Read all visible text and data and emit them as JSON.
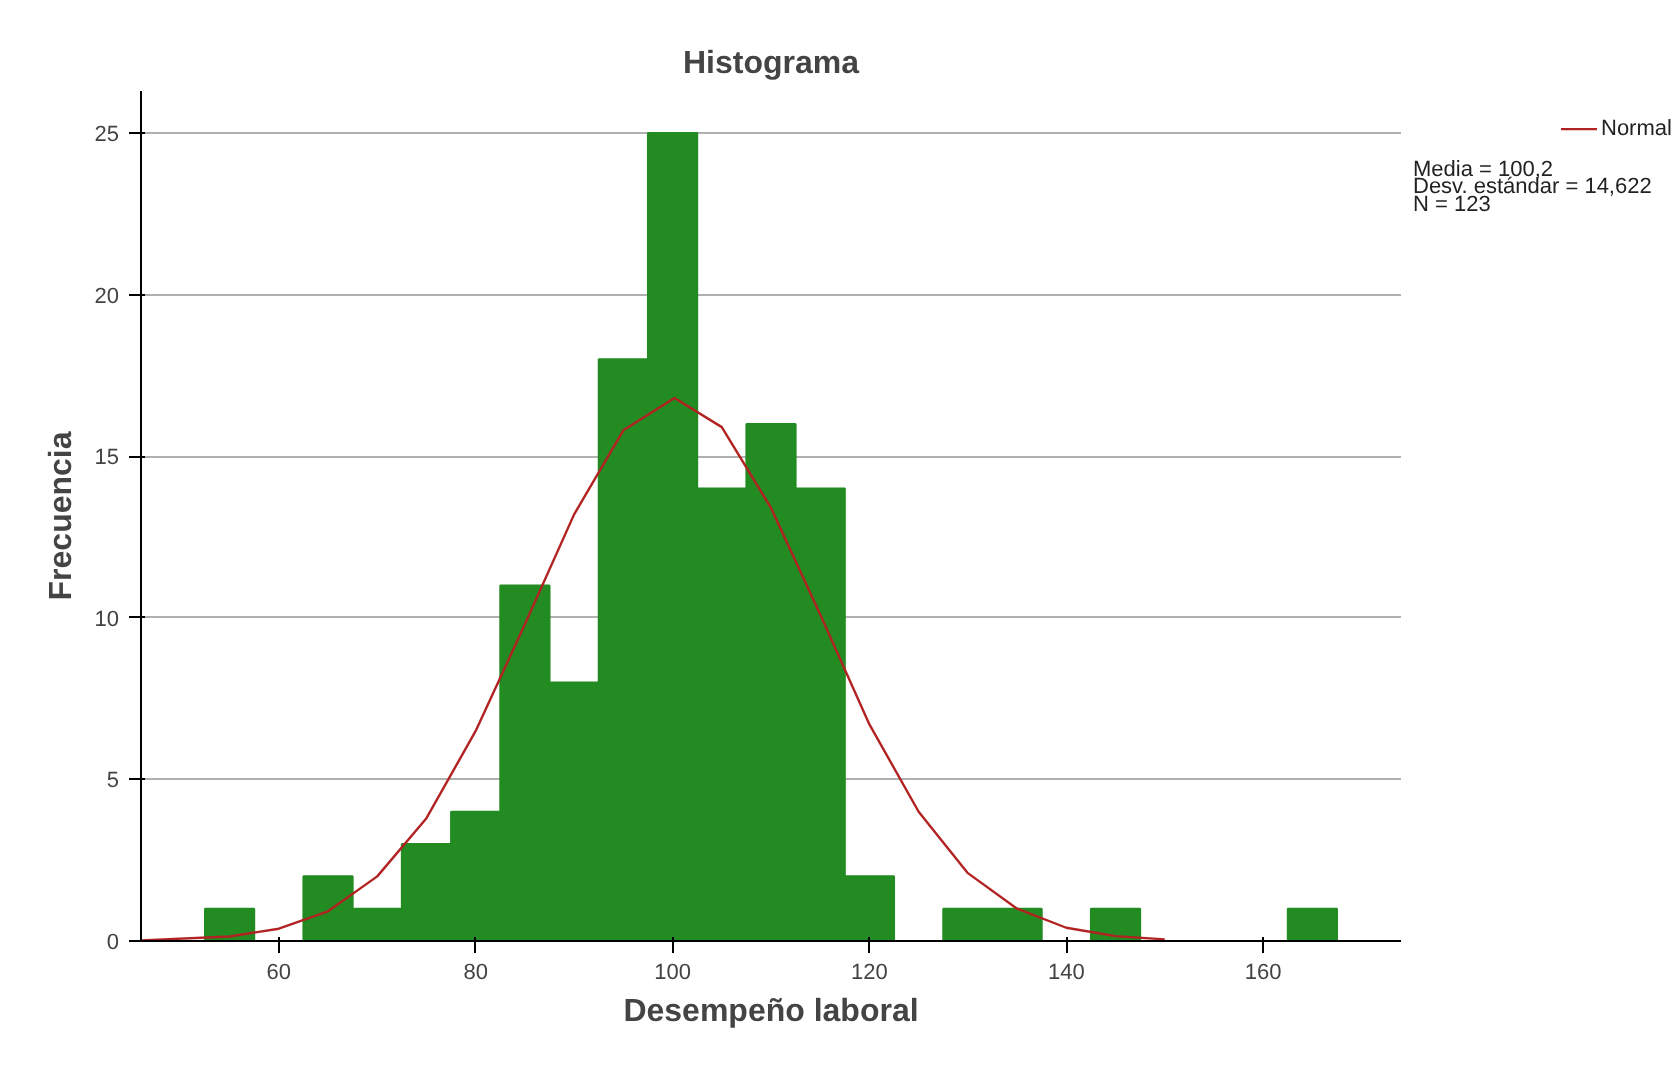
{
  "chart_data": {
    "type": "histogram",
    "title": "Histograma",
    "xlabel": "Desempeño laboral",
    "ylabel": "Frecuencia",
    "series": [
      {
        "color": "#228b22",
        "bins": [
          52.5,
          57.5,
          62.5,
          67.5,
          72.5,
          77.5,
          82.5,
          87.5,
          92.5,
          97.5,
          102.5,
          107.5,
          112.5,
          117.5,
          122.5,
          127.5,
          132.5,
          137.5,
          142.5,
          147.5,
          152.5,
          157.5,
          162.5,
          167.5
        ],
        "values": [
          1,
          0,
          2,
          1,
          3,
          4,
          11,
          8,
          18,
          25,
          14,
          16,
          14,
          2,
          0,
          1,
          1,
          0,
          1,
          0,
          0,
          0,
          1
        ]
      },
      {
        "type": "line",
        "name": "Normal",
        "color": "#b22222",
        "x": [
          46,
          55,
          60,
          65,
          70,
          75,
          80,
          85,
          90,
          95,
          100.2,
          105,
          110,
          115,
          120,
          125,
          130,
          135,
          140,
          145,
          150
        ],
        "values": [
          0.02,
          0.14,
          0.38,
          0.92,
          2.0,
          3.8,
          6.5,
          9.8,
          13.2,
          15.8,
          16.8,
          15.9,
          13.4,
          10.1,
          6.7,
          4.0,
          2.1,
          1.0,
          0.41,
          0.15,
          0.05
        ]
      }
    ],
    "xlim": [
      46,
      174
    ],
    "ylim": [
      0,
      26.3
    ],
    "xticks": [
      60,
      80,
      100,
      120,
      140,
      160
    ],
    "yticks": [
      0,
      5,
      10,
      15,
      20,
      25
    ],
    "grid": "y",
    "legend": "top right",
    "annotations": [
      "Media = 100,2",
      "Desv. estándar = 14,622",
      "N = 123"
    ]
  }
}
